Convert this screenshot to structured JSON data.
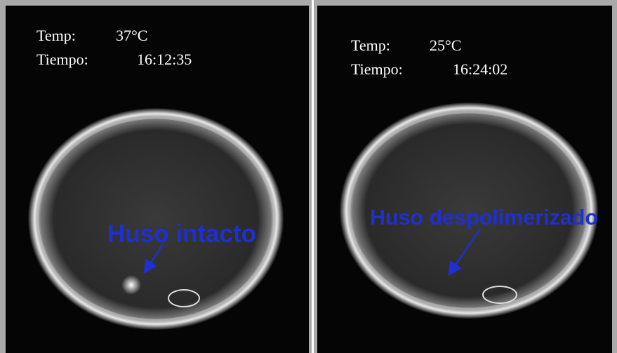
{
  "panels": [
    {
      "temp_label": "Temp:",
      "temp": "37°C",
      "time_label": "Tiempo:",
      "time": "16:12:35",
      "annotation": "Huso intacto"
    },
    {
      "temp_label": "Temp:",
      "temp": "25°C",
      "time_label": "Tiempo:",
      "time": "16:24:02",
      "annotation": "Huso despolimerizado"
    }
  ]
}
